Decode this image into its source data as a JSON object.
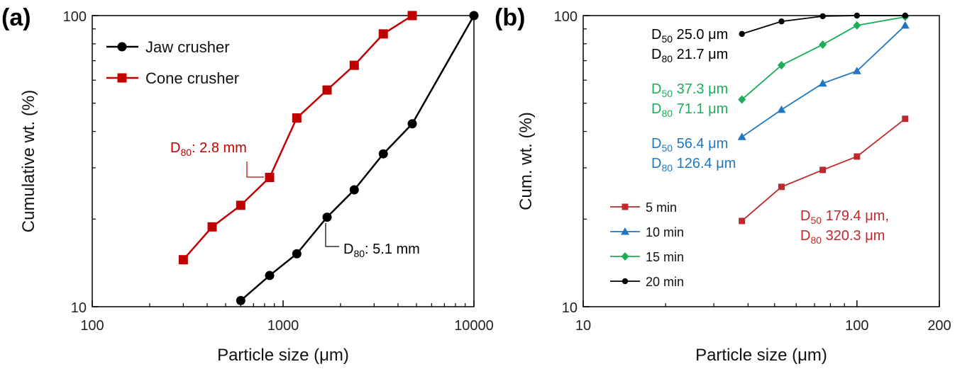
{
  "chart_data": [
    {
      "panel_label": "(a)",
      "type": "line",
      "xscale": "log",
      "yscale": "log",
      "xlabel": "Particle size (μm)",
      "ylabel": "Cumulative wt. (%)",
      "xlim": [
        100,
        10000
      ],
      "ylim": [
        10,
        100
      ],
      "xticks": [
        100,
        1000,
        10000
      ],
      "xtick_labels": [
        "100",
        "1000",
        "10000"
      ],
      "yticks": [
        10,
        100
      ],
      "ytick_labels": [
        "10",
        "100"
      ],
      "legend_position": "top-left",
      "series": [
        {
          "name": "Jaw crusher",
          "color": "#000000",
          "marker": "circle",
          "x": [
            600,
            850,
            1180,
            1700,
            2360,
            3350,
            4750,
            10000
          ],
          "y": [
            10.5,
            12.8,
            15.2,
            20.3,
            25.2,
            33.5,
            42.5,
            100
          ]
        },
        {
          "name": "Cone crusher",
          "color": "#c00000",
          "marker": "square",
          "x": [
            300,
            425,
            600,
            850,
            1180,
            1700,
            2360,
            3350,
            4750
          ],
          "y": [
            14.5,
            18.8,
            22.3,
            27.8,
            44.5,
            55.5,
            67.5,
            86.5,
            100
          ]
        }
      ],
      "annotations": [
        {
          "id": "cone-d80",
          "color": "#c00000",
          "main": "D",
          "sub": "80",
          "rest": ": 2.8 mm",
          "point": [
            850,
            27.8
          ]
        },
        {
          "id": "jaw-d80",
          "color": "#000000",
          "main": "D",
          "sub": "80",
          "rest": ": 5.1 mm",
          "point": [
            1700,
            20.3
          ]
        }
      ]
    },
    {
      "panel_label": "(b)",
      "type": "line",
      "xscale": "log",
      "yscale": "log",
      "xlabel": "Particle size (μm)",
      "ylabel": "Cum. wt. (%)",
      "xlim": [
        10,
        200
      ],
      "ylim": [
        10,
        100
      ],
      "xticks": [
        10,
        100,
        200
      ],
      "xtick_labels": [
        "10",
        "100",
        "200"
      ],
      "yticks": [
        10,
        100
      ],
      "ytick_labels": [
        "10",
        "100"
      ],
      "legend_position": "bottom-left",
      "series": [
        {
          "name": "5 min",
          "color": "#c0292b",
          "marker": "square",
          "x": [
            38,
            53,
            75,
            100,
            150
          ],
          "y": [
            19.7,
            25.8,
            29.5,
            32.8,
            44.2
          ]
        },
        {
          "name": "10 min",
          "color": "#1f77c2",
          "marker": "triangle",
          "x": [
            38,
            53,
            75,
            100,
            150
          ],
          "y": [
            38.3,
            47.5,
            58.5,
            64.5,
            92.5
          ]
        },
        {
          "name": "15 min",
          "color": "#1aae5a",
          "marker": "diamond",
          "x": [
            38,
            53,
            75,
            100,
            150
          ],
          "y": [
            51.5,
            67.5,
            79.5,
            92.5,
            99
          ]
        },
        {
          "name": "20 min",
          "color": "#000000",
          "marker": "circle",
          "x": [
            38,
            53,
            75,
            100,
            150
          ],
          "y": [
            86.5,
            95.5,
            99.5,
            100,
            100
          ]
        }
      ],
      "annotations": [
        {
          "id": "20min",
          "color": "#000000",
          "lines": [
            {
              "main": "D",
              "sub": "50",
              "rest": " 25.0 μm"
            },
            {
              "main": "D",
              "sub": "80",
              "rest": " 21.7 μm"
            }
          ]
        },
        {
          "id": "15min",
          "color": "#1aae5a",
          "lines": [
            {
              "main": "D",
              "sub": "50",
              "rest": " 37.3 μm"
            },
            {
              "main": "D",
              "sub": "80",
              "rest": " 71.1 μm"
            }
          ]
        },
        {
          "id": "10min",
          "color": "#1f77c2",
          "lines": [
            {
              "main": "D",
              "sub": "50",
              "rest": " 56.4 μm"
            },
            {
              "main": "D",
              "sub": "80",
              "rest": " 126.4 μm"
            }
          ]
        },
        {
          "id": "5min",
          "color": "#c0292b",
          "lines": [
            {
              "main": "D",
              "sub": "50",
              "rest": " 179.4 μm,"
            },
            {
              "main": "D",
              "sub": "80",
              "rest": " 320.3 μm"
            }
          ]
        }
      ]
    }
  ]
}
